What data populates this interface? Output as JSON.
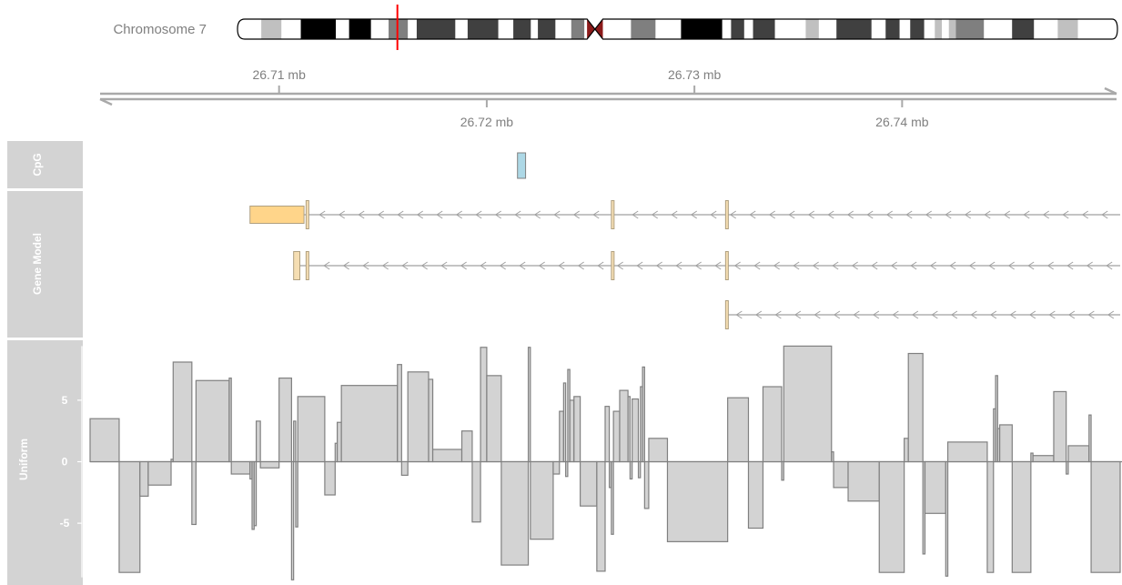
{
  "ideogram": {
    "label": "Chromosome 7",
    "bands": [
      {
        "start": 0.0,
        "end": 0.025,
        "color": "#ffffff"
      },
      {
        "start": 0.025,
        "end": 0.048,
        "color": "#c0c0c0"
      },
      {
        "start": 0.048,
        "end": 0.07,
        "color": "#ffffff"
      },
      {
        "start": 0.07,
        "end": 0.11,
        "color": "#000000"
      },
      {
        "start": 0.11,
        "end": 0.125,
        "color": "#ffffff"
      },
      {
        "start": 0.125,
        "end": 0.15,
        "color": "#000000"
      },
      {
        "start": 0.15,
        "end": 0.17,
        "color": "#ffffff"
      },
      {
        "start": 0.17,
        "end": 0.192,
        "color": "#7f7f7f"
      },
      {
        "start": 0.192,
        "end": 0.202,
        "color": "#ffffff"
      },
      {
        "start": 0.202,
        "end": 0.246,
        "color": "#404040"
      },
      {
        "start": 0.246,
        "end": 0.26,
        "color": "#ffffff"
      },
      {
        "start": 0.26,
        "end": 0.295,
        "color": "#404040"
      },
      {
        "start": 0.295,
        "end": 0.312,
        "color": "#ffffff"
      },
      {
        "start": 0.312,
        "end": 0.332,
        "color": "#404040"
      },
      {
        "start": 0.332,
        "end": 0.34,
        "color": "#ffffff"
      },
      {
        "start": 0.34,
        "end": 0.36,
        "color": "#404040"
      },
      {
        "start": 0.36,
        "end": 0.378,
        "color": "#ffffff"
      },
      {
        "start": 0.378,
        "end": 0.393,
        "color": "#7f7f7f"
      },
      {
        "start": 0.393,
        "end": 0.396,
        "color": "#ffffff"
      },
      {
        "start": 0.414,
        "end": 0.446,
        "color": "#ffffff"
      },
      {
        "start": 0.446,
        "end": 0.474,
        "color": "#7f7f7f"
      },
      {
        "start": 0.474,
        "end": 0.503,
        "color": "#ffffff"
      },
      {
        "start": 0.503,
        "end": 0.55,
        "color": "#000000"
      },
      {
        "start": 0.55,
        "end": 0.56,
        "color": "#ffffff"
      },
      {
        "start": 0.56,
        "end": 0.575,
        "color": "#404040"
      },
      {
        "start": 0.575,
        "end": 0.585,
        "color": "#ffffff"
      },
      {
        "start": 0.585,
        "end": 0.61,
        "color": "#404040"
      },
      {
        "start": 0.61,
        "end": 0.645,
        "color": "#ffffff"
      },
      {
        "start": 0.645,
        "end": 0.66,
        "color": "#c0c0c0"
      },
      {
        "start": 0.66,
        "end": 0.68,
        "color": "#ffffff"
      },
      {
        "start": 0.68,
        "end": 0.72,
        "color": "#404040"
      },
      {
        "start": 0.72,
        "end": 0.736,
        "color": "#ffffff"
      },
      {
        "start": 0.736,
        "end": 0.752,
        "color": "#404040"
      },
      {
        "start": 0.752,
        "end": 0.764,
        "color": "#ffffff"
      },
      {
        "start": 0.764,
        "end": 0.78,
        "color": "#404040"
      },
      {
        "start": 0.78,
        "end": 0.792,
        "color": "#ffffff"
      },
      {
        "start": 0.792,
        "end": 0.8,
        "color": "#c0c0c0"
      },
      {
        "start": 0.8,
        "end": 0.808,
        "color": "#ffffff"
      },
      {
        "start": 0.808,
        "end": 0.816,
        "color": "#c0c0c0"
      },
      {
        "start": 0.816,
        "end": 0.848,
        "color": "#7f7f7f"
      },
      {
        "start": 0.848,
        "end": 0.88,
        "color": "#ffffff"
      },
      {
        "start": 0.88,
        "end": 0.905,
        "color": "#404040"
      },
      {
        "start": 0.905,
        "end": 0.932,
        "color": "#ffffff"
      },
      {
        "start": 0.932,
        "end": 0.955,
        "color": "#c0c0c0"
      },
      {
        "start": 0.955,
        "end": 1.0,
        "color": "#ffffff"
      }
    ],
    "centromere": {
      "start": 0.396,
      "end": 0.414,
      "color": "#8b1a1a"
    },
    "highlight": {
      "position": 0.18,
      "color": "#ff0000"
    }
  },
  "axis": {
    "ticks_top": [
      {
        "value": 26.71,
        "label": "26.71 mb"
      },
      {
        "value": 26.73,
        "label": "26.73 mb"
      }
    ],
    "ticks_bottom": [
      {
        "value": 26.72,
        "label": "26.72 mb"
      },
      {
        "value": 26.74,
        "label": "26.74 mb"
      }
    ]
  },
  "tracks": {
    "cpg_title": "CpG",
    "gene_title": "Gene Model",
    "data_title": "Uniform"
  },
  "chart_data": {
    "type": "bar",
    "xrange_mb": [
      26.7009,
      26.7505
    ],
    "ylim": [
      -9.8,
      9.8
    ],
    "yticks": [
      {
        "value": 5,
        "label": "5"
      },
      {
        "value": 0,
        "label": "0"
      },
      {
        "value": -5,
        "label": "-5"
      }
    ],
    "cpg_islands": [
      {
        "start": 26.72148,
        "end": 26.72187
      }
    ],
    "transcripts": [
      {
        "strand": "-",
        "start": 26.7086,
        "end": 26.7505,
        "exons": [
          {
            "start": 26.7086,
            "end": 26.7112,
            "type": "utr"
          },
          {
            "start": 26.7113,
            "end": 26.7114,
            "type": "utr"
          },
          {
            "start": 26.726,
            "end": 26.7261,
            "type": "utr"
          },
          {
            "start": 26.7315,
            "end": 26.7316,
            "type": "utr"
          }
        ]
      },
      {
        "strand": "-",
        "start": 26.7107,
        "end": 26.7505,
        "exons": [
          {
            "start": 26.7107,
            "end": 26.711,
            "type": "utr"
          },
          {
            "start": 26.7113,
            "end": 26.7114,
            "type": "utr"
          },
          {
            "start": 26.726,
            "end": 26.7261,
            "type": "utr"
          },
          {
            "start": 26.7315,
            "end": 26.7316,
            "type": "utr"
          }
        ]
      },
      {
        "strand": "-",
        "start": 26.7315,
        "end": 26.7505,
        "exons": [
          {
            "start": 26.7315,
            "end": 26.7316,
            "type": "utr"
          }
        ]
      }
    ],
    "bars": [
      {
        "start": 26.7009,
        "end": 26.7023,
        "value": 3.5
      },
      {
        "start": 26.7023,
        "end": 26.7033,
        "value": -9.0
      },
      {
        "start": 26.7033,
        "end": 26.7037,
        "value": -2.8
      },
      {
        "start": 26.7037,
        "end": 26.7048,
        "value": -1.9
      },
      {
        "start": 26.7048,
        "end": 26.7049,
        "value": 0.2
      },
      {
        "start": 26.7049,
        "end": 26.7058,
        "value": 8.1
      },
      {
        "start": 26.7058,
        "end": 26.706,
        "value": -5.1
      },
      {
        "start": 26.706,
        "end": 26.7076,
        "value": 6.6
      },
      {
        "start": 26.7076,
        "end": 26.7077,
        "value": 6.8
      },
      {
        "start": 26.7077,
        "end": 26.7086,
        "value": -1.0
      },
      {
        "start": 26.7086,
        "end": 26.7087,
        "value": -1.4
      },
      {
        "start": 26.7087,
        "end": 26.7088,
        "value": -5.5
      },
      {
        "start": 26.7088,
        "end": 26.7089,
        "value": -5.2
      },
      {
        "start": 26.7089,
        "end": 26.7091,
        "value": 3.3
      },
      {
        "start": 26.7091,
        "end": 26.71,
        "value": -0.5
      },
      {
        "start": 26.71,
        "end": 26.7106,
        "value": 6.8
      },
      {
        "start": 26.7106,
        "end": 26.7107,
        "value": -9.6
      },
      {
        "start": 26.7107,
        "end": 26.7108,
        "value": 3.3
      },
      {
        "start": 26.7108,
        "end": 26.7109,
        "value": -5.3
      },
      {
        "start": 26.7109,
        "end": 26.7122,
        "value": 5.3
      },
      {
        "start": 26.7122,
        "end": 26.7127,
        "value": -2.7
      },
      {
        "start": 26.7127,
        "end": 26.7128,
        "value": 1.5
      },
      {
        "start": 26.7128,
        "end": 26.713,
        "value": 3.2
      },
      {
        "start": 26.713,
        "end": 26.7157,
        "value": 6.2
      },
      {
        "start": 26.7157,
        "end": 26.7159,
        "value": 7.9
      },
      {
        "start": 26.7159,
        "end": 26.7162,
        "value": -1.1
      },
      {
        "start": 26.7162,
        "end": 26.7172,
        "value": 7.3
      },
      {
        "start": 26.7172,
        "end": 26.7174,
        "value": 6.7
      },
      {
        "start": 26.7174,
        "end": 26.7188,
        "value": 1.0
      },
      {
        "start": 26.7188,
        "end": 26.7193,
        "value": 2.5
      },
      {
        "start": 26.7193,
        "end": 26.7197,
        "value": -4.9
      },
      {
        "start": 26.7197,
        "end": 26.72,
        "value": 9.3
      },
      {
        "start": 26.72,
        "end": 26.7207,
        "value": 7.0
      },
      {
        "start": 26.7207,
        "end": 26.722,
        "value": -8.4
      },
      {
        "start": 26.722,
        "end": 26.7221,
        "value": 9.3
      },
      {
        "start": 26.7221,
        "end": 26.7232,
        "value": -6.3
      },
      {
        "start": 26.7232,
        "end": 26.7235,
        "value": -1.0
      },
      {
        "start": 26.7235,
        "end": 26.7237,
        "value": 4.1
      },
      {
        "start": 26.7237,
        "end": 26.7238,
        "value": 6.4
      },
      {
        "start": 26.7238,
        "end": 26.7239,
        "value": -1.2
      },
      {
        "start": 26.7239,
        "end": 26.724,
        "value": 7.5
      },
      {
        "start": 26.724,
        "end": 26.7242,
        "value": 5.0
      },
      {
        "start": 26.7242,
        "end": 26.7245,
        "value": 5.3
      },
      {
        "start": 26.7245,
        "end": 26.7253,
        "value": -3.6
      },
      {
        "start": 26.7253,
        "end": 26.7257,
        "value": -8.9
      },
      {
        "start": 26.7257,
        "end": 26.7259,
        "value": 4.5
      },
      {
        "start": 26.7259,
        "end": 26.726,
        "value": -2.1
      },
      {
        "start": 26.726,
        "end": 26.7261,
        "value": -5.9
      },
      {
        "start": 26.7261,
        "end": 26.7264,
        "value": 4.1
      },
      {
        "start": 26.7264,
        "end": 26.7268,
        "value": 5.8
      },
      {
        "start": 26.7268,
        "end": 26.7269,
        "value": 5.3
      },
      {
        "start": 26.7269,
        "end": 26.727,
        "value": -1.4
      },
      {
        "start": 26.727,
        "end": 26.7273,
        "value": 5.1
      },
      {
        "start": 26.7273,
        "end": 26.7274,
        "value": -1.3
      },
      {
        "start": 26.7274,
        "end": 26.7275,
        "value": 6.1
      },
      {
        "start": 26.7275,
        "end": 26.7276,
        "value": 7.7
      },
      {
        "start": 26.7276,
        "end": 26.7278,
        "value": -3.8
      },
      {
        "start": 26.7278,
        "end": 26.7287,
        "value": 1.9
      },
      {
        "start": 26.7287,
        "end": 26.7316,
        "value": -6.5
      },
      {
        "start": 26.7316,
        "end": 26.7326,
        "value": 5.2
      },
      {
        "start": 26.7326,
        "end": 26.7333,
        "value": -5.4
      },
      {
        "start": 26.7333,
        "end": 26.7342,
        "value": 6.1
      },
      {
        "start": 26.7342,
        "end": 26.7343,
        "value": -1.5
      },
      {
        "start": 26.7343,
        "end": 26.7366,
        "value": 9.4
      },
      {
        "start": 26.7366,
        "end": 26.7367,
        "value": 0.8
      },
      {
        "start": 26.7367,
        "end": 26.7374,
        "value": -2.1
      },
      {
        "start": 26.7374,
        "end": 26.7389,
        "value": -3.2
      },
      {
        "start": 26.7389,
        "end": 26.7401,
        "value": -9.0
      },
      {
        "start": 26.7401,
        "end": 26.7403,
        "value": 1.9
      },
      {
        "start": 26.7403,
        "end": 26.741,
        "value": 8.8
      },
      {
        "start": 26.741,
        "end": 26.7411,
        "value": -7.5
      },
      {
        "start": 26.7411,
        "end": 26.7421,
        "value": -4.2
      },
      {
        "start": 26.7421,
        "end": 26.7422,
        "value": -9.3
      },
      {
        "start": 26.7422,
        "end": 26.7441,
        "value": 1.6
      },
      {
        "start": 26.7441,
        "end": 26.7444,
        "value": -9.0
      },
      {
        "start": 26.7444,
        "end": 26.7445,
        "value": 4.3
      },
      {
        "start": 26.7445,
        "end": 26.7446,
        "value": 7.0
      },
      {
        "start": 26.7446,
        "end": 26.7447,
        "value": 2.7
      },
      {
        "start": 26.7447,
        "end": 26.7453,
        "value": 3.0
      },
      {
        "start": 26.7453,
        "end": 26.7462,
        "value": -9.0
      },
      {
        "start": 26.7462,
        "end": 26.7463,
        "value": 0.7
      },
      {
        "start": 26.7463,
        "end": 26.7473,
        "value": 0.5
      },
      {
        "start": 26.7473,
        "end": 26.7479,
        "value": 5.7
      },
      {
        "start": 26.7479,
        "end": 26.748,
        "value": -1.0
      },
      {
        "start": 26.748,
        "end": 26.749,
        "value": 1.3
      },
      {
        "start": 26.749,
        "end": 26.7491,
        "value": 3.8
      },
      {
        "start": 26.7491,
        "end": 26.7505,
        "value": -9.0
      }
    ]
  }
}
